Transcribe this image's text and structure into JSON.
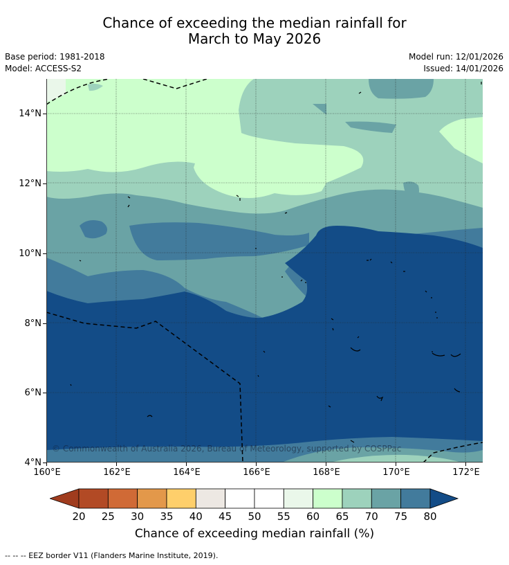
{
  "title": {
    "line1": "Chance of exceeding the median rainfall for",
    "line2": "March to May 2026"
  },
  "meta": {
    "base_period": "Base period: 1981-2018",
    "model": "Model: ACCESS-S2",
    "model_run": "Model run: 12/01/2026",
    "issued": "Issued: 14/01/2026"
  },
  "map": {
    "lat_labels": [
      "14°N",
      "12°N",
      "10°N",
      "8°N",
      "6°N",
      "4°N"
    ],
    "lon_labels": [
      "160°E",
      "162°E",
      "164°E",
      "166°E",
      "168°E",
      "170°E",
      "172°E"
    ],
    "copyright": "© Commonwealth of Australia 2026, Bureau of Meteorology, supported by COSPPac",
    "colors": {
      "c60_65": "#ccffcc",
      "c55_60": "#eaf7ea",
      "c65_70": "#9dd2bc",
      "c70_75": "#6aa3a5",
      "c75_80": "#427b9c",
      "c80_plus": "#134c87"
    }
  },
  "colorbar": {
    "ticks": [
      "20",
      "25",
      "30",
      "35",
      "40",
      "45",
      "50",
      "55",
      "60",
      "65",
      "70",
      "75",
      "80"
    ],
    "colors": [
      "#b24a25",
      "#d06a36",
      "#e3984a",
      "#fecf6b",
      "#ede8e3",
      "#ffffff",
      "#ffffff",
      "#eaf7ea",
      "#ccffcc",
      "#9dd2bc",
      "#6aa3a5",
      "#427b9c"
    ],
    "under_color": "#a03c1e",
    "over_color": "#134c87",
    "label": "Chance of exceeding median rainfall (%)"
  },
  "footnote": "--  --  -- EEZ border V11 (Flanders Marine Institute, 2019)."
}
